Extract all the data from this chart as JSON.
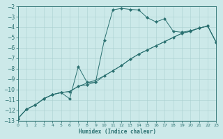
{
  "bg_color": "#cce9e9",
  "grid_color": "#aad0d0",
  "line_color": "#2a7070",
  "xlabel": "Humidex (Indice chaleur)",
  "xlim": [
    0,
    23
  ],
  "ylim": [
    -13,
    -2
  ],
  "xticks": [
    0,
    1,
    2,
    3,
    4,
    5,
    6,
    7,
    8,
    9,
    10,
    11,
    12,
    13,
    14,
    15,
    16,
    17,
    18,
    19,
    20,
    21,
    22,
    23
  ],
  "yticks": [
    -2,
    -3,
    -4,
    -5,
    -6,
    -7,
    -8,
    -9,
    -10,
    -11,
    -12,
    -13
  ],
  "s1_x": [
    0,
    1,
    2,
    3,
    4,
    5,
    6,
    7,
    8,
    9,
    10,
    11,
    12,
    13,
    14,
    15,
    16,
    17,
    18,
    19,
    20,
    21,
    22,
    23
  ],
  "s1_y": [
    -12.8,
    -11.9,
    -11.5,
    -10.9,
    -10.5,
    -10.3,
    -10.2,
    -9.7,
    -9.4,
    -9.1,
    -8.7,
    -8.2,
    -7.7,
    -7.1,
    -6.6,
    -6.2,
    -5.8,
    -5.4,
    -5.0,
    -4.6,
    -4.4,
    -4.1,
    -3.9,
    -5.5
  ],
  "s2_x": [
    0,
    1,
    2,
    3,
    4,
    5,
    6,
    7,
    8,
    9,
    10,
    11,
    12,
    13,
    14,
    15,
    16,
    17,
    18,
    19,
    20,
    21,
    22,
    23
  ],
  "s2_y": [
    -12.8,
    -11.9,
    -11.5,
    -10.9,
    -10.5,
    -10.3,
    -10.9,
    -7.8,
    -9.3,
    -9.3,
    -5.3,
    -2.35,
    -2.2,
    -2.3,
    -2.35,
    -3.1,
    -3.5,
    -3.2,
    -4.4,
    -4.5,
    -4.35,
    -4.1,
    -3.9,
    -5.5
  ],
  "s3_x": [
    0,
    1,
    2,
    3,
    4,
    5,
    6,
    7,
    8,
    9,
    10,
    11,
    12,
    13,
    14,
    15,
    16,
    17,
    18,
    19,
    20,
    21,
    22,
    23
  ],
  "s3_y": [
    -12.8,
    -11.9,
    -11.5,
    -10.9,
    -10.5,
    -10.3,
    -10.2,
    -9.7,
    -9.55,
    -9.3,
    -8.7,
    -8.2,
    -7.7,
    -7.1,
    -6.6,
    -6.2,
    -5.8,
    -5.4,
    -5.0,
    -4.6,
    -4.4,
    -4.1,
    -3.9,
    -5.5
  ]
}
